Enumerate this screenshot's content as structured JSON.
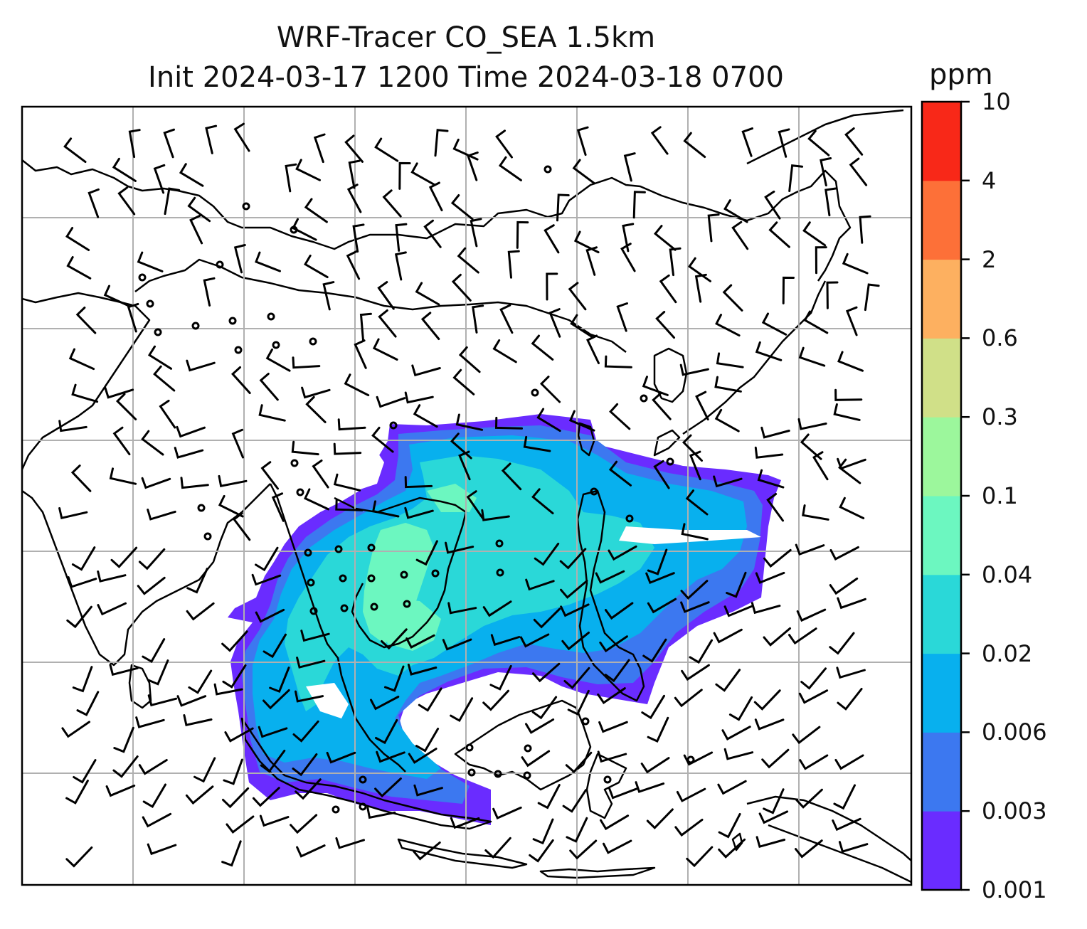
{
  "title": {
    "line1": "WRF-Tracer CO_SEA 1.5km",
    "line2": "Init 2024-03-17 1200 Time 2024-03-18 0700"
  },
  "colorbar": {
    "unit": "ppm",
    "ticks": [
      "0.001",
      "0.003",
      "0.006",
      "0.02",
      "0.04",
      "0.1",
      "0.3",
      "0.6",
      "2",
      "4",
      "10"
    ],
    "colors": [
      "#6a2cff",
      "#3c78f0",
      "#08b0ee",
      "#2ad8d8",
      "#6cf7c0",
      "#9cf79c",
      "#d0e088",
      "#fdb060",
      "#fd7038",
      "#f82818"
    ]
  },
  "map": {
    "colors": {
      "frame": "#000000",
      "gridlines": "#b0b0b0",
      "coastline": "#000000",
      "wind_barbs": "#000000"
    }
  }
}
